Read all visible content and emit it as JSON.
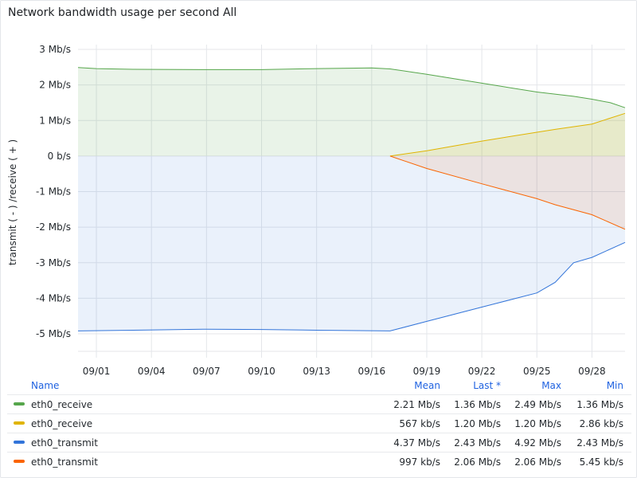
{
  "panel": {
    "title": "Network bandwidth usage per second All"
  },
  "chart_data": {
    "type": "area",
    "title": "Network bandwidth usage per second All",
    "ylabel": "transmit ( - ) /receive ( + )",
    "xlabel": "",
    "ylim": [
      -5.4,
      3.3
    ],
    "y_unit": "Mb/s",
    "y_ticks": [
      3,
      2,
      1,
      0,
      -1,
      -2,
      -3,
      -4,
      -5
    ],
    "y_tick_labels": [
      "3 Mb/s",
      "2 Mb/s",
      "1 Mb/s",
      "0 b/s",
      "-1 Mb/s",
      "-2 Mb/s",
      "-3 Mb/s",
      "-4 Mb/s",
      "-5 Mb/s"
    ],
    "xlim": [
      "08/31",
      "10/01"
    ],
    "x_ticks": [
      "09/01",
      "09/04",
      "09/07",
      "09/10",
      "09/13",
      "09/16",
      "09/19",
      "09/22",
      "09/25",
      "09/28"
    ],
    "x_tick_labels": [
      "09/01",
      "09/04",
      "09/07",
      "09/10",
      "09/13",
      "09/16",
      "09/19",
      "09/22",
      "09/25",
      "09/28"
    ],
    "grid": true,
    "series": [
      {
        "name": "eth0_receive",
        "color": "#56a64b",
        "x": [
          "08/31",
          "09/01",
          "09/03",
          "09/07",
          "09/10",
          "09/13",
          "09/16",
          "09/17",
          "09/19",
          "09/22",
          "09/25",
          "09/27",
          "09/28",
          "09/29",
          "10/01"
        ],
        "values": [
          2.49,
          2.46,
          2.44,
          2.43,
          2.43,
          2.46,
          2.48,
          2.45,
          2.3,
          2.05,
          1.8,
          1.68,
          1.6,
          1.5,
          1.36
        ]
      },
      {
        "name": "eth0_receive",
        "color": "#e0b400",
        "x": [
          "09/17",
          "09/19",
          "09/22",
          "09/25",
          "09/26",
          "09/28",
          "10/01"
        ],
        "values": [
          0.0,
          0.15,
          0.42,
          0.67,
          0.75,
          0.9,
          1.2
        ]
      },
      {
        "name": "eth0_transmit",
        "color": "#3274d9",
        "x": [
          "08/31",
          "09/03",
          "09/07",
          "09/10",
          "09/13",
          "09/17",
          "09/19",
          "09/22",
          "09/25",
          "09/26",
          "09/27",
          "09/28",
          "10/01"
        ],
        "values": [
          -4.92,
          -4.9,
          -4.87,
          -4.88,
          -4.9,
          -4.92,
          -4.65,
          -4.25,
          -3.85,
          -3.55,
          -3.0,
          -2.85,
          -2.43
        ]
      },
      {
        "name": "eth0_transmit",
        "color": "#fa6400",
        "x": [
          "09/17",
          "09/19",
          "09/22",
          "09/25",
          "09/26",
          "09/28",
          "10/01"
        ],
        "values": [
          0.0,
          -0.35,
          -0.78,
          -1.2,
          -1.37,
          -1.65,
          -2.06
        ]
      }
    ]
  },
  "legend": {
    "headers": {
      "name": "Name",
      "mean": "Mean",
      "last": "Last *",
      "max": "Max",
      "min": "Min"
    },
    "rows": [
      {
        "name": "eth0_receive",
        "color": "#56a64b",
        "mean": "2.21 Mb/s",
        "last": "1.36 Mb/s",
        "max": "2.49 Mb/s",
        "min": "1.36 Mb/s"
      },
      {
        "name": "eth0_receive",
        "color": "#e0b400",
        "mean": "567 kb/s",
        "last": "1.20 Mb/s",
        "max": "1.20 Mb/s",
        "min": "2.86 kb/s"
      },
      {
        "name": "eth0_transmit",
        "color": "#3274d9",
        "mean": "4.37 Mb/s",
        "last": "2.43 Mb/s",
        "max": "4.92 Mb/s",
        "min": "2.43 Mb/s"
      },
      {
        "name": "eth0_transmit",
        "color": "#fa6400",
        "mean": "997 kb/s",
        "last": "2.06 Mb/s",
        "max": "2.06 Mb/s",
        "min": "5.45 kb/s"
      }
    ]
  }
}
